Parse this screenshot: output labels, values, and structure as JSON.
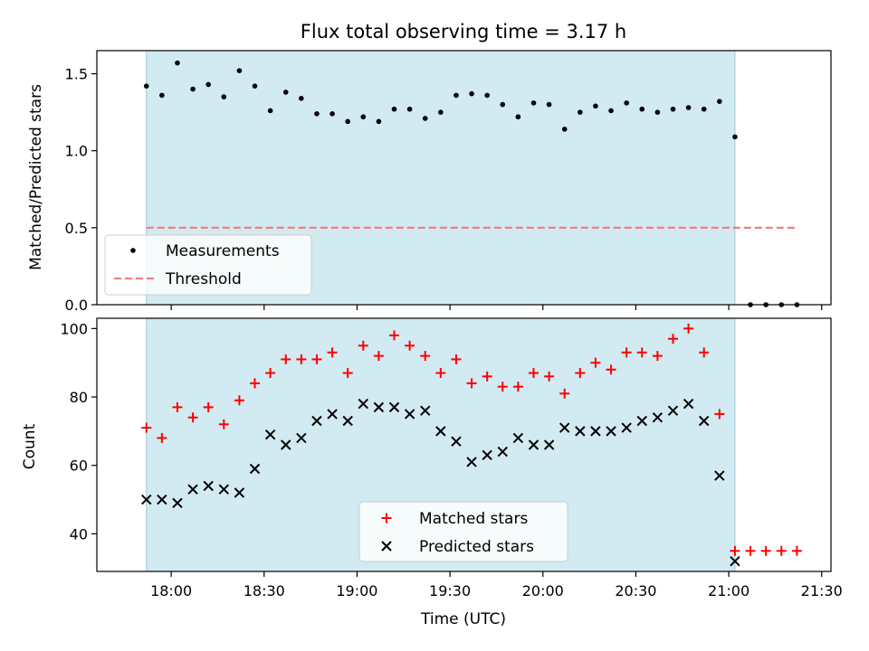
{
  "chart_data": [
    {
      "type": "scatter",
      "title": "Flux total observing time = 3.17 h",
      "xlabel": "",
      "ylabel": "Matched/Predicted stars",
      "ylim": [
        0,
        1.65
      ],
      "xlim": [
        "17:36",
        "21:33"
      ],
      "yticks": [
        "0.0",
        "0.5",
        "1.0",
        "1.5"
      ],
      "shaded_interval": [
        "17:52",
        "21:02"
      ],
      "legend_position": "lower-left",
      "legend": [
        "Measurements",
        "Threshold"
      ],
      "series": [
        {
          "name": "Measurements",
          "marker": "dot",
          "color": "#000000",
          "x": [
            "17:52",
            "17:57",
            "18:02",
            "18:07",
            "18:12",
            "18:17",
            "18:22",
            "18:27",
            "18:32",
            "18:37",
            "18:42",
            "18:47",
            "18:52",
            "18:57",
            "19:02",
            "19:07",
            "19:12",
            "19:17",
            "19:22",
            "19:27",
            "19:32",
            "19:37",
            "19:42",
            "19:47",
            "19:52",
            "19:57",
            "20:02",
            "20:07",
            "20:12",
            "20:17",
            "20:22",
            "20:27",
            "20:32",
            "20:37",
            "20:42",
            "20:47",
            "20:52",
            "20:57",
            "21:02",
            "21:07",
            "21:12",
            "21:17",
            "21:22"
          ],
          "y": [
            1.42,
            1.36,
            1.57,
            1.4,
            1.43,
            1.35,
            1.52,
            1.42,
            1.26,
            1.38,
            1.34,
            1.24,
            1.24,
            1.19,
            1.22,
            1.19,
            1.27,
            1.27,
            1.21,
            1.25,
            1.36,
            1.37,
            1.36,
            1.3,
            1.22,
            1.31,
            1.3,
            1.14,
            1.25,
            1.29,
            1.26,
            1.31,
            1.27,
            1.25,
            1.27,
            1.28,
            1.27,
            1.32,
            1.09,
            0.0,
            0.0,
            0.0,
            0.0
          ]
        },
        {
          "name": "Threshold",
          "marker": "dashed-line",
          "color": "#f08080",
          "x": [
            "17:52",
            "21:22"
          ],
          "y": [
            0.5,
            0.5
          ]
        }
      ]
    },
    {
      "type": "scatter",
      "xlabel": "Time (UTC)",
      "ylabel": "Count",
      "ylim": [
        29,
        103
      ],
      "xlim": [
        "17:36",
        "21:33"
      ],
      "xticks": [
        "18:00",
        "18:30",
        "19:00",
        "19:30",
        "20:00",
        "20:30",
        "21:00",
        "21:30"
      ],
      "yticks": [
        "40",
        "60",
        "80",
        "100"
      ],
      "shaded_interval": [
        "17:52",
        "21:02"
      ],
      "legend_position": "lower-center",
      "legend": [
        "Matched stars",
        "Predicted stars"
      ],
      "series": [
        {
          "name": "Matched stars",
          "marker": "plus",
          "color": "#ff0000",
          "x": [
            "17:52",
            "17:57",
            "18:02",
            "18:07",
            "18:12",
            "18:17",
            "18:22",
            "18:27",
            "18:32",
            "18:37",
            "18:42",
            "18:47",
            "18:52",
            "18:57",
            "19:02",
            "19:07",
            "19:12",
            "19:17",
            "19:22",
            "19:27",
            "19:32",
            "19:37",
            "19:42",
            "19:47",
            "19:52",
            "19:57",
            "20:02",
            "20:07",
            "20:12",
            "20:17",
            "20:22",
            "20:27",
            "20:32",
            "20:37",
            "20:42",
            "20:47",
            "20:52",
            "20:57",
            "21:02",
            "21:07",
            "21:12",
            "21:17",
            "21:22"
          ],
          "y": [
            71,
            68,
            77,
            74,
            77,
            72,
            79,
            84,
            87,
            91,
            91,
            91,
            93,
            87,
            95,
            92,
            98,
            95,
            92,
            87,
            91,
            84,
            86,
            83,
            83,
            87,
            86,
            81,
            87,
            90,
            88,
            93,
            93,
            92,
            97,
            100,
            93,
            75,
            35,
            35,
            35,
            35,
            35
          ]
        },
        {
          "name": "Predicted stars",
          "marker": "x",
          "color": "#000000",
          "x": [
            "17:52",
            "17:57",
            "18:02",
            "18:07",
            "18:12",
            "18:17",
            "18:22",
            "18:27",
            "18:32",
            "18:37",
            "18:42",
            "18:47",
            "18:52",
            "18:57",
            "19:02",
            "19:07",
            "19:12",
            "19:17",
            "19:22",
            "19:27",
            "19:32",
            "19:37",
            "19:42",
            "19:47",
            "19:52",
            "19:57",
            "20:02",
            "20:07",
            "20:12",
            "20:17",
            "20:22",
            "20:27",
            "20:32",
            "20:37",
            "20:42",
            "20:47",
            "20:52",
            "20:57",
            "21:02"
          ],
          "y": [
            50,
            50,
            49,
            53,
            54,
            53,
            52,
            59,
            69,
            66,
            68,
            73,
            75,
            73,
            78,
            77,
            77,
            75,
            76,
            70,
            67,
            61,
            63,
            64,
            68,
            66,
            66,
            71,
            70,
            70,
            70,
            71,
            73,
            74,
            76,
            78,
            73,
            57,
            32
          ]
        }
      ]
    }
  ],
  "colors": {
    "shade": "#add8e6",
    "matched": "#ff0000",
    "predicted": "#000000",
    "measurements": "#000000",
    "threshold": "#f08080"
  }
}
